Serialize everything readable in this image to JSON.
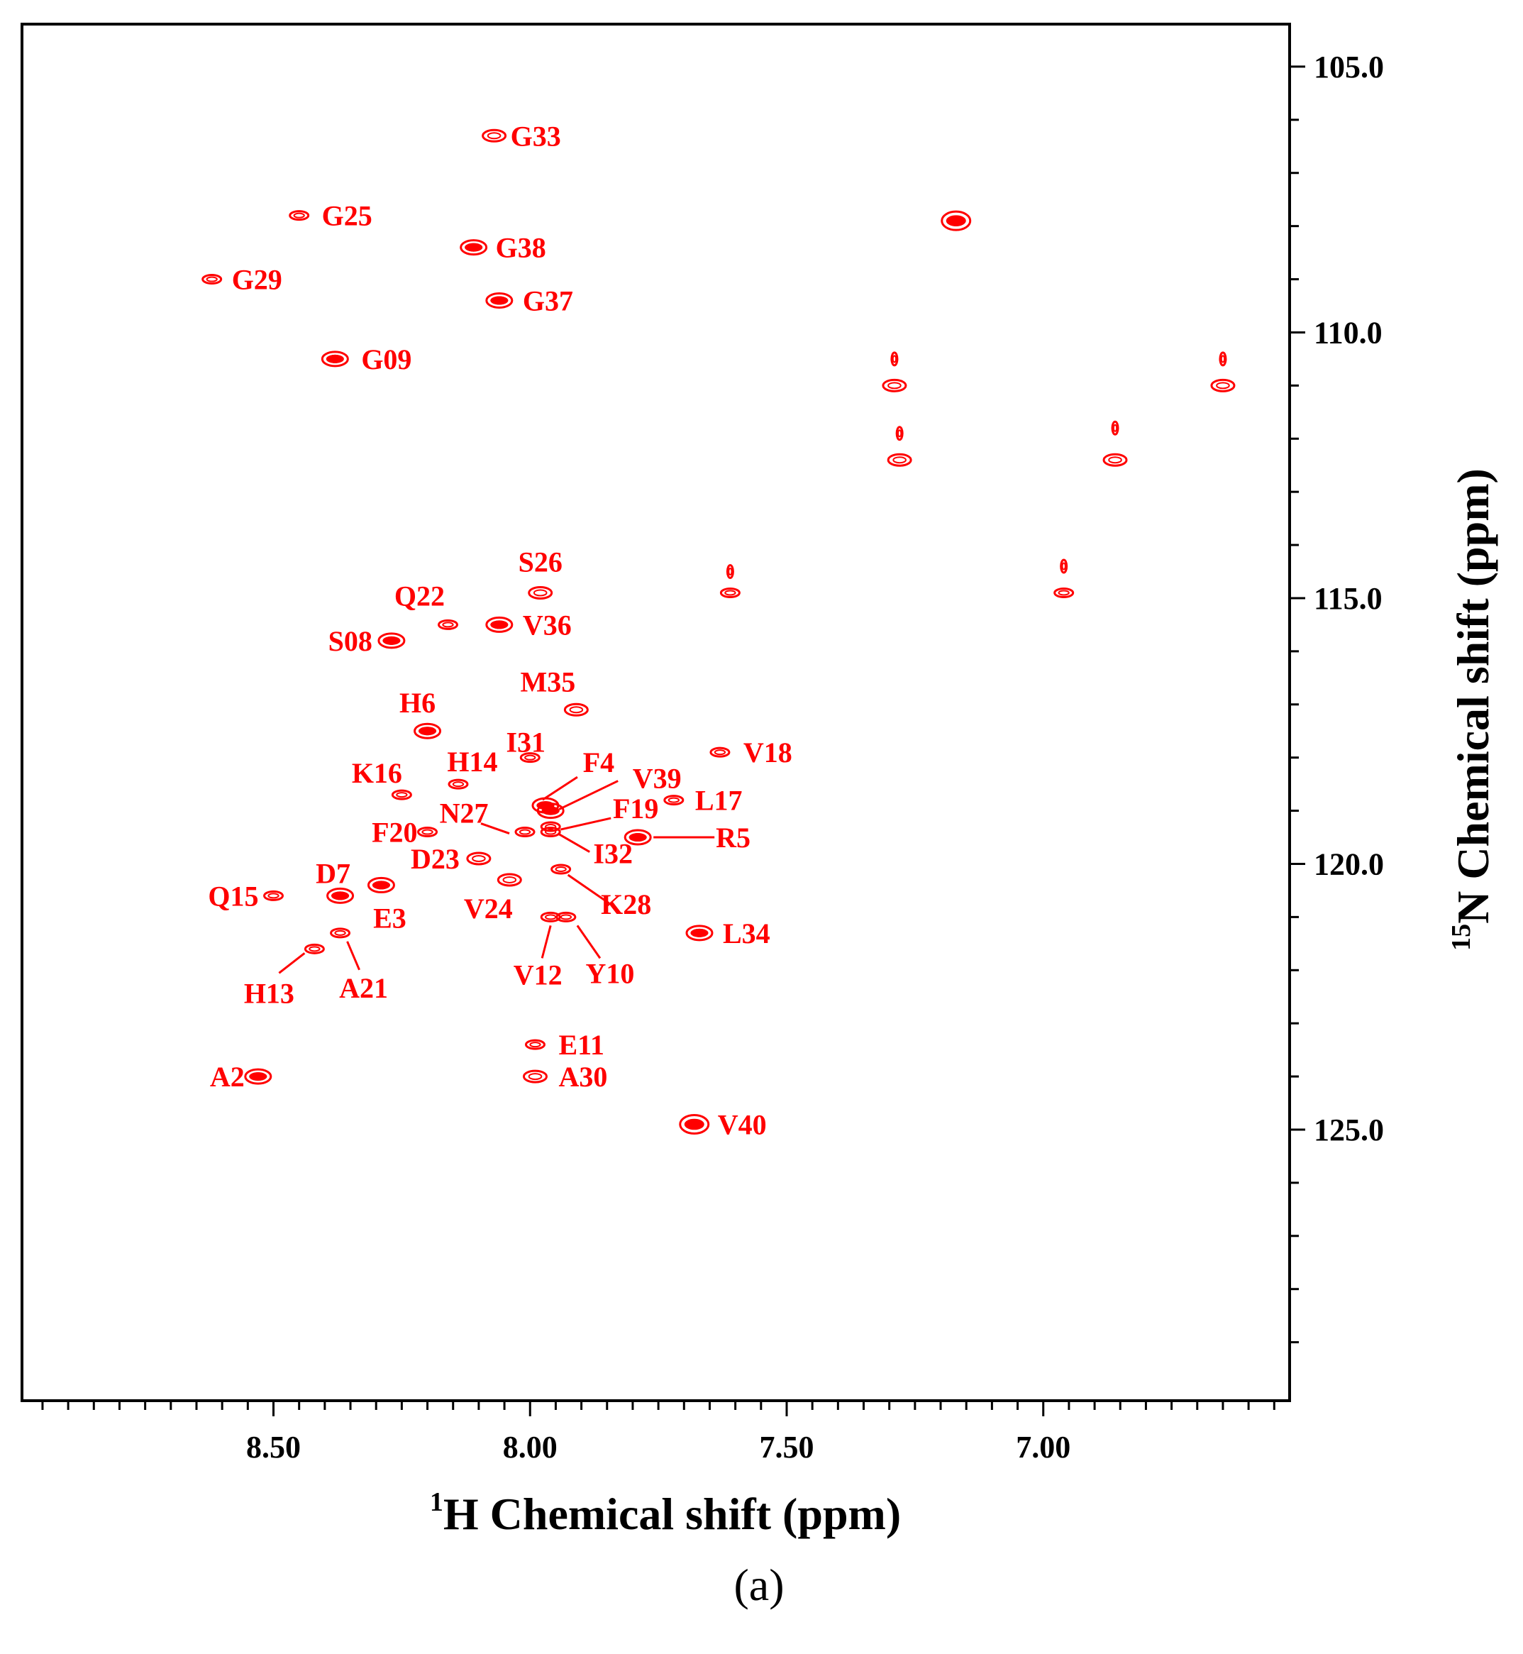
{
  "chart_data": {
    "type": "scatter",
    "xlabel": "H Chemical shift (ppm)",
    "xlabel_superscript": "1",
    "ylabel": "N Chemical shift (ppm)",
    "ylabel_superscript": "15",
    "caption": "(a)",
    "x_reversed": true,
    "y_reversed": true,
    "xlim": [
      8.99,
      6.52
    ],
    "ylim": [
      104.2,
      130.1
    ],
    "x_ticks": [
      "8.50",
      "8.00",
      "7.50",
      "7.00"
    ],
    "x_tick_values": [
      8.5,
      8.0,
      7.5,
      7.0
    ],
    "y_ticks": [
      "105.0",
      "110.0",
      "115.0",
      "120.0",
      "125.0"
    ],
    "y_tick_values": [
      105.0,
      110.0,
      115.0,
      120.0,
      125.0
    ],
    "colors": {
      "peaks": "#ff0000",
      "axes": "#000000"
    },
    "peaks": [
      {
        "label": "G33",
        "x": 8.07,
        "y": 106.3,
        "strength": 2
      },
      {
        "label": "G25",
        "x": 8.45,
        "y": 107.8,
        "strength": 1
      },
      {
        "label": "G38",
        "x": 8.11,
        "y": 108.4,
        "strength": 3
      },
      {
        "label": "G29",
        "x": 8.62,
        "y": 109.0,
        "strength": 1
      },
      {
        "label": "G37",
        "x": 8.06,
        "y": 109.4,
        "strength": 3
      },
      {
        "label": "G09",
        "x": 8.38,
        "y": 110.5,
        "strength": 3
      },
      {
        "label": "S26",
        "x": 7.98,
        "y": 114.9,
        "strength": 2
      },
      {
        "label": "Q22",
        "x": 8.16,
        "y": 115.5,
        "strength": 1
      },
      {
        "label": "V36",
        "x": 8.06,
        "y": 115.5,
        "strength": 3
      },
      {
        "label": "S08",
        "x": 8.27,
        "y": 115.8,
        "strength": 3
      },
      {
        "label": "M35",
        "x": 7.91,
        "y": 117.1,
        "strength": 2
      },
      {
        "label": "H6",
        "x": 8.2,
        "y": 117.5,
        "strength": 3
      },
      {
        "label": "I31",
        "x": 8.0,
        "y": 118.0,
        "strength": 1
      },
      {
        "label": "V18",
        "x": 7.63,
        "y": 117.9,
        "strength": 1
      },
      {
        "label": "H14",
        "x": 8.14,
        "y": 118.5,
        "strength": 1
      },
      {
        "label": "K16",
        "x": 8.25,
        "y": 118.7,
        "strength": 1
      },
      {
        "label": "F4",
        "x": 7.97,
        "y": 118.9,
        "strength": 3
      },
      {
        "label": "V39",
        "x": 7.96,
        "y": 119.0,
        "strength": 3
      },
      {
        "label": "L17",
        "x": 7.72,
        "y": 118.8,
        "strength": 1
      },
      {
        "label": "F19",
        "x": 7.96,
        "y": 119.3,
        "strength": 1
      },
      {
        "label": "N27",
        "x": 8.01,
        "y": 119.4,
        "strength": 1
      },
      {
        "label": "F20",
        "x": 8.2,
        "y": 119.4,
        "strength": 1
      },
      {
        "label": "I32",
        "x": 7.96,
        "y": 119.4,
        "strength": 1
      },
      {
        "label": "R5",
        "x": 7.79,
        "y": 119.5,
        "strength": 3
      },
      {
        "label": "D23",
        "x": 8.1,
        "y": 119.9,
        "strength": 2
      },
      {
        "label": "K28",
        "x": 7.94,
        "y": 120.1,
        "strength": 1
      },
      {
        "label": "V24",
        "x": 8.04,
        "y": 120.3,
        "strength": 2
      },
      {
        "label": "D7",
        "x": 8.37,
        "y": 120.6,
        "strength": 3
      },
      {
        "label": "E3",
        "x": 8.29,
        "y": 120.4,
        "strength": 3
      },
      {
        "label": "Q15",
        "x": 8.5,
        "y": 120.6,
        "strength": 1
      },
      {
        "label": "V12",
        "x": 7.96,
        "y": 121.0,
        "strength": 1
      },
      {
        "label": "Y10",
        "x": 7.93,
        "y": 121.0,
        "strength": 1
      },
      {
        "label": "L34",
        "x": 7.67,
        "y": 121.3,
        "strength": 3
      },
      {
        "label": "A21",
        "x": 8.37,
        "y": 121.3,
        "strength": 1
      },
      {
        "label": "H13",
        "x": 8.42,
        "y": 121.6,
        "strength": 1
      },
      {
        "label": "E11",
        "x": 7.99,
        "y": 123.4,
        "strength": 1
      },
      {
        "label": "A2",
        "x": 8.53,
        "y": 124.0,
        "strength": 3
      },
      {
        "label": "A30",
        "x": 7.99,
        "y": 124.0,
        "strength": 2
      },
      {
        "label": "V40",
        "x": 7.68,
        "y": 124.9,
        "strength": 4
      },
      {
        "label": "",
        "x": 7.17,
        "y": 107.9,
        "strength": 4
      },
      {
        "label": "",
        "x": 7.29,
        "y": 110.5,
        "strength": 0
      },
      {
        "label": "",
        "x": 7.29,
        "y": 111.0,
        "strength": 2
      },
      {
        "label": "",
        "x": 7.28,
        "y": 111.9,
        "strength": 0
      },
      {
        "label": "",
        "x": 7.28,
        "y": 112.4,
        "strength": 2
      },
      {
        "label": "",
        "x": 6.86,
        "y": 111.8,
        "strength": 0
      },
      {
        "label": "",
        "x": 6.86,
        "y": 112.4,
        "strength": 2
      },
      {
        "label": "",
        "x": 6.65,
        "y": 110.5,
        "strength": 0
      },
      {
        "label": "",
        "x": 6.65,
        "y": 111.0,
        "strength": 2
      },
      {
        "label": "",
        "x": 7.61,
        "y": 114.5,
        "strength": 0
      },
      {
        "label": "",
        "x": 7.61,
        "y": 114.9,
        "strength": 1
      },
      {
        "label": "",
        "x": 6.96,
        "y": 114.4,
        "strength": 0
      },
      {
        "label": "",
        "x": 6.96,
        "y": 114.9,
        "strength": 1
      }
    ]
  }
}
